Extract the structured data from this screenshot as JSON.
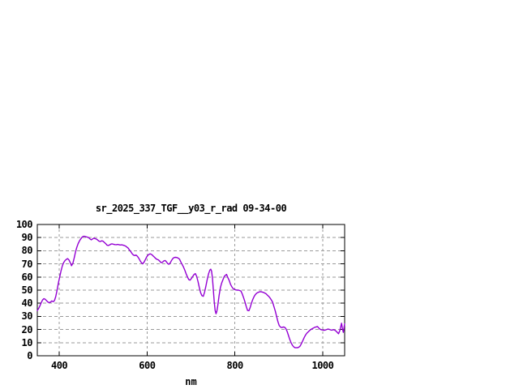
{
  "chart_data": {
    "type": "line",
    "title": "sr_2025_337_TGF__y03_r_rad 09-34-00",
    "xlabel": "nm",
    "ylabel": "",
    "xlim": [
      350,
      1050
    ],
    "ylim": [
      0,
      100
    ],
    "x_ticks": [
      400,
      600,
      800,
      1000
    ],
    "y_ticks": [
      0,
      10,
      20,
      30,
      40,
      50,
      60,
      70,
      80,
      90,
      100
    ],
    "grid": true,
    "legend": "none",
    "colors": {
      "line": "#9400D3",
      "grid": "#9a9a9a",
      "border": "#000000",
      "background": "#ffffff",
      "text": "#000000"
    },
    "series": [
      {
        "name": "sr_2025_337_TGF__y03_r_rad",
        "points": [
          [
            350,
            34.5
          ],
          [
            353,
            36
          ],
          [
            356,
            38
          ],
          [
            359,
            40.5
          ],
          [
            362,
            42.5
          ],
          [
            365,
            43.5
          ],
          [
            368,
            43
          ],
          [
            371,
            42
          ],
          [
            374,
            41
          ],
          [
            377,
            40.5
          ],
          [
            380,
            40.8
          ],
          [
            383,
            41.8
          ],
          [
            386,
            41.2
          ],
          [
            389,
            42
          ],
          [
            392,
            45
          ],
          [
            395,
            50
          ],
          [
            398,
            55.5
          ],
          [
            401,
            60
          ],
          [
            404,
            64.5
          ],
          [
            407,
            68.5
          ],
          [
            410,
            71
          ],
          [
            413,
            72.5
          ],
          [
            416,
            73.4
          ],
          [
            419,
            74
          ],
          [
            422,
            73
          ],
          [
            425,
            71
          ],
          [
            428,
            68.6
          ],
          [
            431,
            70.5
          ],
          [
            434,
            74.5
          ],
          [
            437,
            79
          ],
          [
            440,
            82.6
          ],
          [
            443,
            85.5
          ],
          [
            446,
            87.5
          ],
          [
            449,
            89
          ],
          [
            452,
            90.3
          ],
          [
            455,
            91
          ],
          [
            458,
            91
          ],
          [
            461,
            90.6
          ],
          [
            464,
            90.4
          ],
          [
            467,
            90
          ],
          [
            470,
            89
          ],
          [
            473,
            88.3
          ],
          [
            476,
            89
          ],
          [
            479,
            89.6
          ],
          [
            482,
            89.2
          ],
          [
            485,
            88.8
          ],
          [
            488,
            88
          ],
          [
            491,
            87.2
          ],
          [
            494,
            87.1
          ],
          [
            497,
            87.6
          ],
          [
            500,
            87.2
          ],
          [
            503,
            86.3
          ],
          [
            506,
            85.3
          ],
          [
            509,
            84.2
          ],
          [
            512,
            84
          ],
          [
            515,
            84.5
          ],
          [
            518,
            85.1
          ],
          [
            521,
            85.2
          ],
          [
            524,
            84.9
          ],
          [
            527,
            84.7
          ],
          [
            530,
            84.6
          ],
          [
            533,
            84.8
          ],
          [
            536,
            84.6
          ],
          [
            539,
            84.4
          ],
          [
            542,
            84.5
          ],
          [
            545,
            84.3
          ],
          [
            548,
            84
          ],
          [
            551,
            83.6
          ],
          [
            554,
            82.8
          ],
          [
            557,
            82
          ],
          [
            560,
            80.5
          ],
          [
            563,
            79.3
          ],
          [
            566,
            77.8
          ],
          [
            569,
            76.7
          ],
          [
            572,
            76.3
          ],
          [
            575,
            76.7
          ],
          [
            578,
            75.8
          ],
          [
            581,
            74.3
          ],
          [
            584,
            72.5
          ],
          [
            587,
            71
          ],
          [
            590,
            70
          ],
          [
            593,
            71.3
          ],
          [
            596,
            73.2
          ],
          [
            599,
            75.2
          ],
          [
            602,
            76.6
          ],
          [
            605,
            77.4
          ],
          [
            608,
            77.6
          ],
          [
            611,
            77
          ],
          [
            614,
            76
          ],
          [
            617,
            75
          ],
          [
            620,
            74
          ],
          [
            623,
            73.4
          ],
          [
            626,
            73
          ],
          [
            629,
            72
          ],
          [
            632,
            70.9
          ],
          [
            635,
            71.2
          ],
          [
            638,
            72.2
          ],
          [
            641,
            72.6
          ],
          [
            644,
            71.6
          ],
          [
            647,
            70.2
          ],
          [
            650,
            69.7
          ],
          [
            653,
            70.9
          ],
          [
            656,
            72.8
          ],
          [
            659,
            74.2
          ],
          [
            662,
            74.9
          ],
          [
            665,
            75
          ],
          [
            668,
            74.8
          ],
          [
            671,
            74.3
          ],
          [
            674,
            73.6
          ],
          [
            677,
            71.4
          ],
          [
            680,
            69.5
          ],
          [
            683,
            67.5
          ],
          [
            686,
            65.2
          ],
          [
            689,
            62.5
          ],
          [
            692,
            60
          ],
          [
            695,
            58
          ],
          [
            698,
            57.6
          ],
          [
            701,
            58.8
          ],
          [
            704,
            60.5
          ],
          [
            707,
            61.9
          ],
          [
            710,
            62.6
          ],
          [
            713,
            60.5
          ],
          [
            716,
            56.5
          ],
          [
            719,
            52
          ],
          [
            722,
            48
          ],
          [
            725,
            45.8
          ],
          [
            728,
            45.3
          ],
          [
            731,
            48.5
          ],
          [
            734,
            53
          ],
          [
            737,
            58
          ],
          [
            740,
            62.5
          ],
          [
            743,
            65.3
          ],
          [
            745,
            66
          ],
          [
            747,
            64.5
          ],
          [
            749,
            59
          ],
          [
            751,
            50
          ],
          [
            753,
            41
          ],
          [
            755,
            34.5
          ],
          [
            757,
            32
          ],
          [
            759,
            33.8
          ],
          [
            761,
            38
          ],
          [
            764,
            46
          ],
          [
            767,
            52
          ],
          [
            770,
            55.5
          ],
          [
            773,
            58
          ],
          [
            776,
            60.5
          ],
          [
            779,
            61.5
          ],
          [
            781,
            62
          ],
          [
            784,
            59.5
          ],
          [
            787,
            57.5
          ],
          [
            790,
            54.5
          ],
          [
            793,
            52.5
          ],
          [
            796,
            51.2
          ],
          [
            799,
            50.5
          ],
          [
            802,
            50.2
          ],
          [
            805,
            50
          ],
          [
            808,
            50
          ],
          [
            811,
            49.7
          ],
          [
            814,
            49.2
          ],
          [
            817,
            47
          ],
          [
            820,
            44
          ],
          [
            823,
            41
          ],
          [
            826,
            37.5
          ],
          [
            829,
            34.5
          ],
          [
            832,
            34.3
          ],
          [
            835,
            37
          ],
          [
            838,
            40.3
          ],
          [
            841,
            43
          ],
          [
            844,
            45.3
          ],
          [
            847,
            46.8
          ],
          [
            850,
            47.8
          ],
          [
            853,
            48.3
          ],
          [
            856,
            48.7
          ],
          [
            859,
            48.8
          ],
          [
            862,
            48.6
          ],
          [
            865,
            48.3
          ],
          [
            868,
            47.8
          ],
          [
            871,
            47.2
          ],
          [
            874,
            46.2
          ],
          [
            877,
            45.3
          ],
          [
            880,
            44
          ],
          [
            883,
            42.5
          ],
          [
            886,
            40.8
          ],
          [
            889,
            37.5
          ],
          [
            892,
            34
          ],
          [
            895,
            30
          ],
          [
            898,
            26
          ],
          [
            901,
            23
          ],
          [
            904,
            21.8
          ],
          [
            907,
            21.5
          ],
          [
            910,
            21.9
          ],
          [
            913,
            21.8
          ],
          [
            916,
            20.8
          ],
          [
            919,
            18.5
          ],
          [
            922,
            15.5
          ],
          [
            925,
            12.5
          ],
          [
            928,
            10
          ],
          [
            931,
            8
          ],
          [
            934,
            6.8
          ],
          [
            937,
            6.2
          ],
          [
            940,
            6.1
          ],
          [
            943,
            6.2
          ],
          [
            946,
            6.6
          ],
          [
            949,
            7.6
          ],
          [
            952,
            9.5
          ],
          [
            955,
            11.8
          ],
          [
            958,
            14
          ],
          [
            961,
            15.8
          ],
          [
            964,
            17.2
          ],
          [
            967,
            18.2
          ],
          [
            970,
            19.2
          ],
          [
            973,
            20
          ],
          [
            976,
            20.6
          ],
          [
            979,
            21.2
          ],
          [
            982,
            21.7
          ],
          [
            985,
            22
          ],
          [
            988,
            22.3
          ],
          [
            991,
            21.2
          ],
          [
            994,
            20.2
          ],
          [
            997,
            19.8
          ],
          [
            1000,
            19.6
          ],
          [
            1003,
            19.4
          ],
          [
            1006,
            19.6
          ],
          [
            1009,
            20
          ],
          [
            1012,
            20.4
          ],
          [
            1015,
            20.1
          ],
          [
            1018,
            19.7
          ],
          [
            1021,
            19.5
          ],
          [
            1024,
            19.9
          ],
          [
            1027,
            19.6
          ],
          [
            1030,
            18.9
          ],
          [
            1033,
            17.9
          ],
          [
            1036,
            16.8
          ],
          [
            1039,
            19
          ],
          [
            1041,
            22
          ],
          [
            1043,
            24.8
          ],
          [
            1045,
            20.5
          ],
          [
            1047,
            17.8
          ],
          [
            1049,
            22.5
          ],
          [
            1050,
            24.3
          ]
        ]
      }
    ]
  }
}
